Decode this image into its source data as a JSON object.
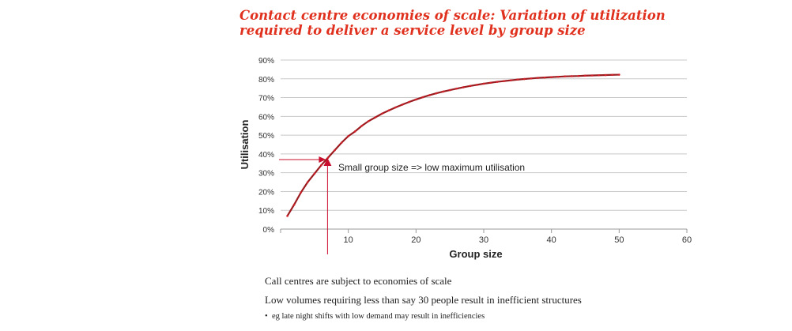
{
  "title": "Contact centre economies of scale: Variation of utilization required to deliver a service level by group size",
  "notes": {
    "line1": "Call centres are subject to economies of scale",
    "line2": "Low volumes requiring less than say 30 people result in inefficient structures",
    "bullet": "eg late night shifts with low demand may  result in  inefficiencies",
    "bullet_marker": "•"
  },
  "colors": {
    "title": "#e0301e",
    "series": "#9b1b1f",
    "marker": "#d0202a",
    "annotation": "#c8102e",
    "grid": "#c8c8c8"
  },
  "chart_data": {
    "type": "line",
    "xlabel": "Group size",
    "ylabel": "Utilisation",
    "xlim": [
      0,
      60
    ],
    "ylim": [
      0,
      90
    ],
    "xticks": [
      10,
      20,
      30,
      40,
      50,
      60
    ],
    "xtick_labels": [
      "10",
      "20",
      "30",
      "40",
      "50",
      "60"
    ],
    "yticks": [
      0,
      10,
      20,
      30,
      40,
      50,
      60,
      70,
      80,
      90
    ],
    "ytick_labels": [
      "0%",
      "10%",
      "20%",
      "30%",
      "40%",
      "50%",
      "60%",
      "70%",
      "80%",
      "90%"
    ],
    "grid": "horizontal",
    "series": [
      {
        "name": "Utilisation",
        "x": [
          1,
          2,
          3,
          4,
          5,
          6,
          7,
          8,
          9,
          10,
          11,
          12,
          13,
          14,
          15,
          16,
          17,
          18,
          19,
          20,
          21,
          22,
          23,
          24,
          25,
          26,
          27,
          28,
          29,
          30,
          31,
          32,
          33,
          34,
          35,
          36,
          37,
          38,
          39,
          40,
          41,
          42,
          43,
          44,
          45,
          46,
          47,
          48,
          49,
          50
        ],
        "values": [
          7,
          13,
          19.5,
          25,
          29.5,
          34,
          38,
          42,
          46,
          49.5,
          52,
          55,
          57.5,
          59.5,
          61.5,
          63.2,
          64.8,
          66.3,
          67.7,
          69,
          70.2,
          71.3,
          72.3,
          73.2,
          74,
          74.8,
          75.5,
          76.2,
          76.8,
          77.4,
          77.9,
          78.4,
          78.8,
          79.2,
          79.6,
          79.9,
          80.2,
          80.5,
          80.7,
          80.9,
          81.1,
          81.3,
          81.4,
          81.5,
          81.7,
          81.8,
          81.9,
          82,
          82.1,
          82.2
        ]
      }
    ],
    "annotation": {
      "text": "Small group size => low maximum utilisation",
      "x": 6.7,
      "y": 37
    }
  }
}
